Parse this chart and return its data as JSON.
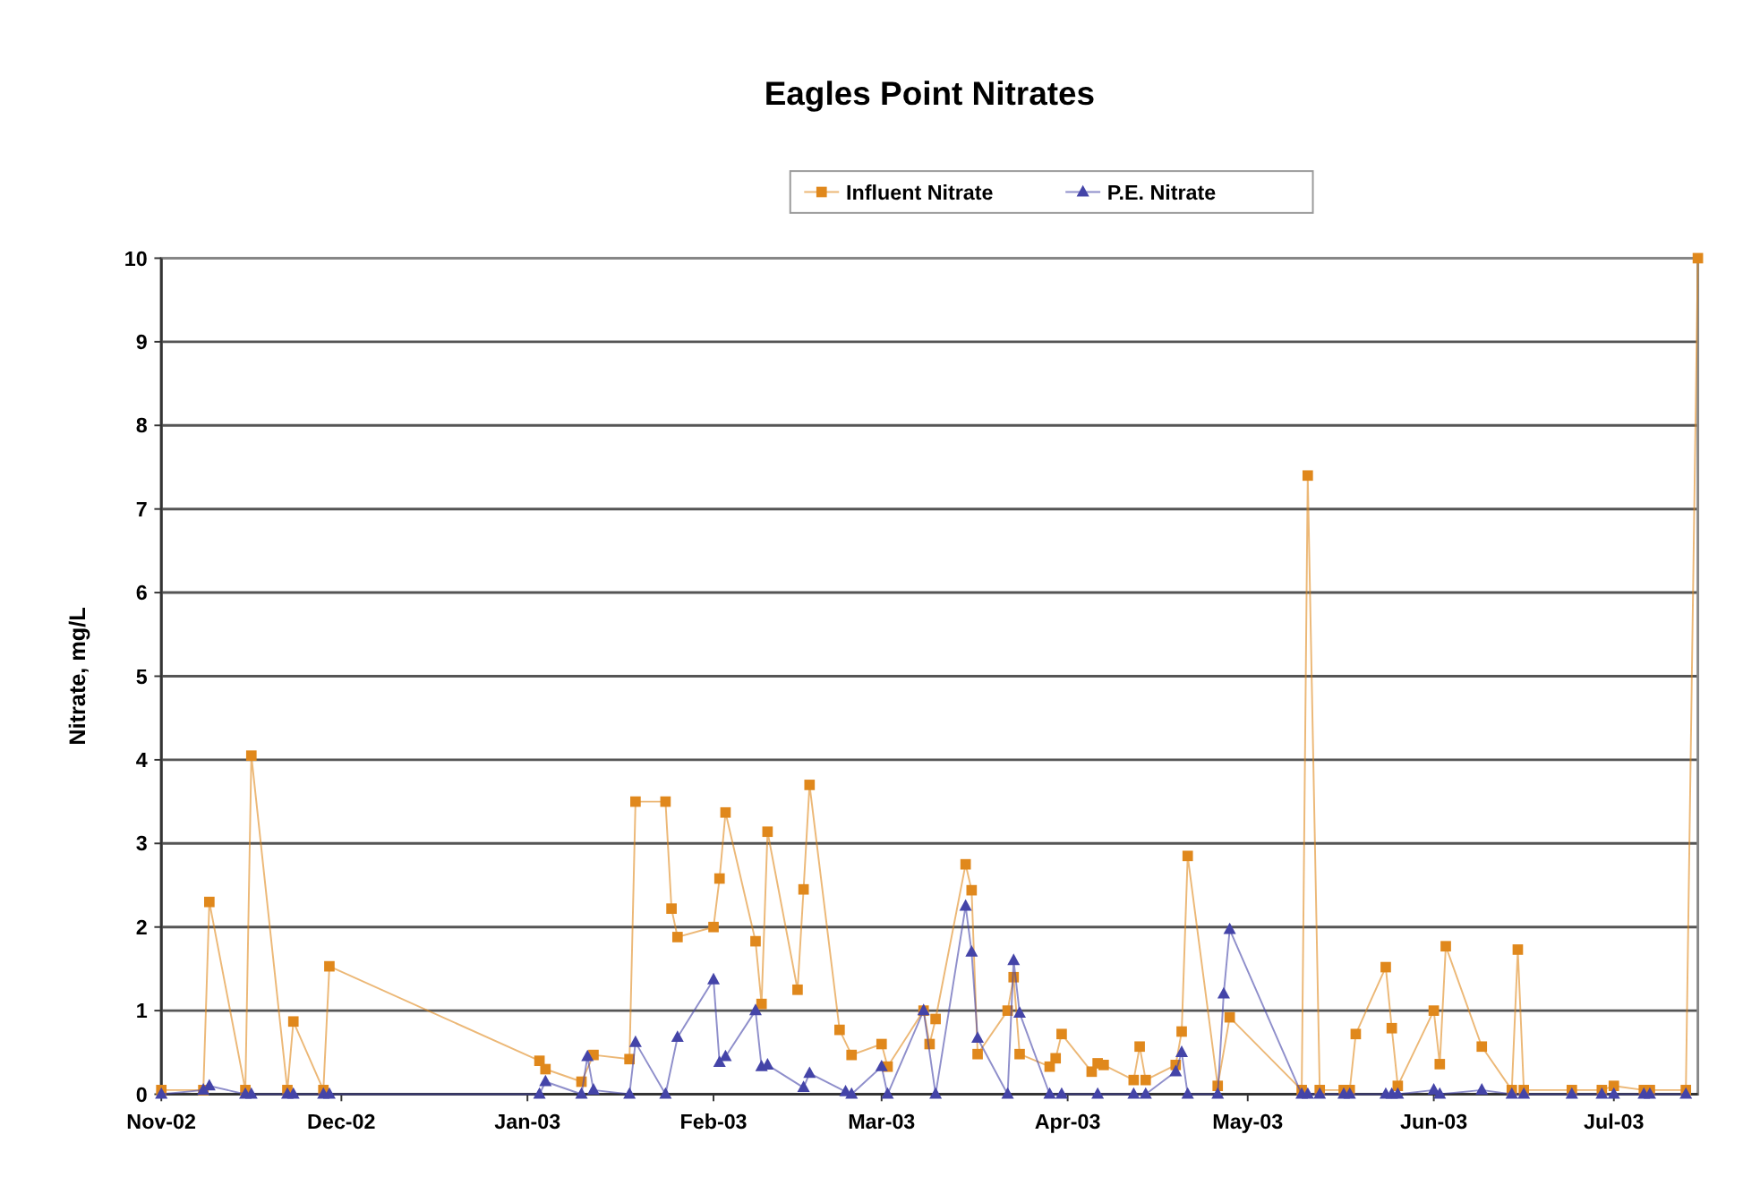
{
  "chart_data": {
    "type": "line",
    "title": "Eagles Point Nitrates",
    "ylabel": "Nitrate, mg/L",
    "legend": "top",
    "grid": "y",
    "xlim": [
      "2002-11-01",
      "2003-07-15"
    ],
    "xticks": [
      {
        "value": "2002-11-01",
        "label": "Nov-02"
      },
      {
        "value": "2002-12-01",
        "label": "Dec-02"
      },
      {
        "value": "2003-01-01",
        "label": "Jan-03"
      },
      {
        "value": "2003-02-01",
        "label": "Feb-03"
      },
      {
        "value": "2003-03-01",
        "label": "Mar-03"
      },
      {
        "value": "2003-04-01",
        "label": "Apr-03"
      },
      {
        "value": "2003-05-01",
        "label": "May-03"
      },
      {
        "value": "2003-06-01",
        "label": "Jun-03"
      },
      {
        "value": "2003-07-01",
        "label": "Jul-03"
      }
    ],
    "ylim": [
      0,
      10
    ],
    "yticks": [
      0,
      1,
      2,
      3,
      4,
      5,
      6,
      7,
      8,
      9,
      10
    ],
    "series": [
      {
        "name": "Influent Nitrate",
        "color": "#e0881c",
        "marker": "square",
        "x": [
          "2002-11-01",
          "2002-11-08",
          "2002-11-09",
          "2002-11-15",
          "2002-11-16",
          "2002-11-22",
          "2002-11-23",
          "2002-11-28",
          "2002-11-29",
          "2003-01-03",
          "2003-01-04",
          "2003-01-10",
          "2003-01-12",
          "2003-01-18",
          "2003-01-19",
          "2003-01-24",
          "2003-01-25",
          "2003-01-26",
          "2003-02-01",
          "2003-02-02",
          "2003-02-03",
          "2003-02-08",
          "2003-02-09",
          "2003-02-10",
          "2003-02-15",
          "2003-02-16",
          "2003-02-17",
          "2003-02-22",
          "2003-02-24",
          "2003-03-01",
          "2003-03-02",
          "2003-03-08",
          "2003-03-09",
          "2003-03-10",
          "2003-03-15",
          "2003-03-16",
          "2003-03-17",
          "2003-03-22",
          "2003-03-23",
          "2003-03-24",
          "2003-03-29",
          "2003-03-30",
          "2003-03-31",
          "2003-04-05",
          "2003-04-06",
          "2003-04-07",
          "2003-04-12",
          "2003-04-13",
          "2003-04-14",
          "2003-04-19",
          "2003-04-20",
          "2003-04-21",
          "2003-04-26",
          "2003-04-28",
          "2003-05-10",
          "2003-05-11",
          "2003-05-13",
          "2003-05-17",
          "2003-05-18",
          "2003-05-19",
          "2003-05-24",
          "2003-05-25",
          "2003-05-26",
          "2003-06-01",
          "2003-06-02",
          "2003-06-03",
          "2003-06-09",
          "2003-06-14",
          "2003-06-15",
          "2003-06-16",
          "2003-06-24",
          "2003-06-29",
          "2003-07-01",
          "2003-07-06",
          "2003-07-07",
          "2003-07-13",
          "2003-07-15"
        ],
        "values": [
          0.05,
          0.05,
          2.3,
          0.05,
          4.05,
          0.05,
          0.87,
          0.05,
          1.53,
          0.4,
          0.3,
          0.15,
          0.47,
          0.42,
          3.5,
          3.5,
          2.22,
          1.88,
          2.0,
          2.58,
          3.37,
          1.83,
          1.08,
          3.14,
          1.25,
          2.45,
          3.7,
          0.77,
          0.47,
          0.6,
          0.33,
          1.0,
          0.6,
          0.9,
          2.75,
          2.44,
          0.48,
          1.0,
          1.4,
          0.48,
          0.33,
          0.43,
          0.72,
          0.27,
          0.37,
          0.35,
          0.17,
          0.57,
          0.17,
          0.35,
          0.75,
          2.85,
          0.1,
          0.92,
          0.05,
          7.4,
          0.05,
          0.05,
          0.05,
          0.72,
          1.52,
          0.79,
          0.1,
          1.0,
          0.36,
          1.77,
          0.57,
          0.05,
          1.73,
          0.05,
          0.05,
          0.05,
          0.1,
          0.05,
          0.05,
          0.05,
          10
        ]
      },
      {
        "name": "P.E. Nitrate",
        "color": "#4444a8",
        "marker": "triangle",
        "x": [
          "2002-11-01",
          "2002-11-08",
          "2002-11-09",
          "2002-11-15",
          "2002-11-16",
          "2002-11-22",
          "2002-11-23",
          "2002-11-28",
          "2002-11-29",
          "2003-01-03",
          "2003-01-04",
          "2003-01-10",
          "2003-01-11",
          "2003-01-12",
          "2003-01-18",
          "2003-01-19",
          "2003-01-24",
          "2003-01-26",
          "2003-02-01",
          "2003-02-02",
          "2003-02-03",
          "2003-02-08",
          "2003-02-09",
          "2003-02-10",
          "2003-02-16",
          "2003-02-17",
          "2003-02-23",
          "2003-02-24",
          "2003-03-01",
          "2003-03-02",
          "2003-03-08",
          "2003-03-10",
          "2003-03-15",
          "2003-03-16",
          "2003-03-17",
          "2003-03-22",
          "2003-03-23",
          "2003-03-24",
          "2003-03-29",
          "2003-03-31",
          "2003-04-06",
          "2003-04-12",
          "2003-04-14",
          "2003-04-19",
          "2003-04-20",
          "2003-04-21",
          "2003-04-26",
          "2003-04-27",
          "2003-04-28",
          "2003-05-10",
          "2003-05-11",
          "2003-05-13",
          "2003-05-17",
          "2003-05-18",
          "2003-05-24",
          "2003-05-25",
          "2003-05-26",
          "2003-06-01",
          "2003-06-02",
          "2003-06-09",
          "2003-06-14",
          "2003-06-16",
          "2003-06-24",
          "2003-06-29",
          "2003-07-01",
          "2003-07-06",
          "2003-07-07",
          "2003-07-13"
        ],
        "values": [
          0,
          0.05,
          0.1,
          0,
          0,
          0,
          0,
          0,
          0,
          0,
          0.15,
          0,
          0.45,
          0.05,
          0,
          0.62,
          0,
          0.68,
          1.37,
          0.38,
          0.45,
          1.0,
          0.33,
          0.35,
          0.08,
          0.25,
          0.03,
          0,
          0.33,
          0,
          1.0,
          0,
          2.25,
          1.7,
          0.67,
          0,
          1.6,
          0.97,
          0,
          0,
          0,
          0,
          0,
          0.27,
          0.5,
          0,
          0,
          1.2,
          1.97,
          0,
          0,
          0,
          0,
          0,
          0,
          0,
          0,
          0.05,
          0,
          0.05,
          0,
          0,
          0,
          0,
          0,
          0,
          0,
          0
        ]
      }
    ]
  }
}
